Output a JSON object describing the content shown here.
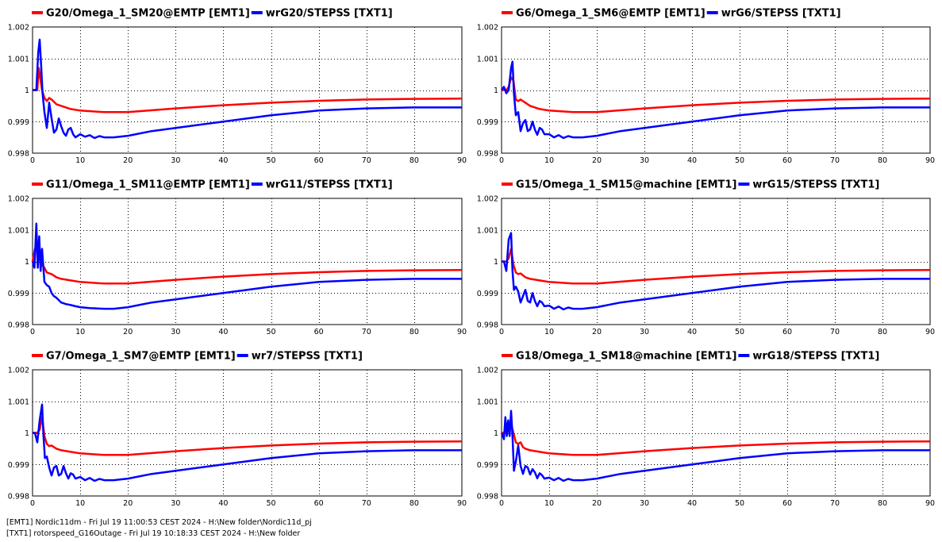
{
  "chart_data": [
    {
      "type": "line",
      "legend": [
        "G20/Omega_1_SM20@EMTP [EMT1]",
        "wrG20/STEPSS [TXT1]"
      ],
      "xlim": [
        0,
        90
      ],
      "ylim": [
        0.998,
        1.002
      ],
      "xticks": [
        0,
        10,
        20,
        30,
        40,
        50,
        60,
        70,
        80,
        90
      ],
      "yticks": [
        "0.998",
        "0.999",
        "1",
        "1.001",
        "1.002"
      ],
      "grid": true,
      "series": [
        {
          "name": "G20/Omega_1_SM20@EMTP [EMT1]",
          "color": "#ff0000",
          "x": [
            0,
            1,
            1.3,
            1.6,
            2,
            2.5,
            3,
            3.5,
            4,
            5,
            6,
            7,
            8,
            10,
            15,
            20,
            30,
            40,
            50,
            60,
            70,
            80,
            90
          ],
          "y": [
            1,
            1,
            1.0007,
            1.0004,
            1.0,
            0.99975,
            0.99965,
            0.99975,
            0.9997,
            0.99955,
            0.9995,
            0.99945,
            0.9994,
            0.99935,
            0.9993,
            0.9993,
            0.99942,
            0.99952,
            0.9996,
            0.99966,
            0.9997,
            0.99972,
            0.99973
          ]
        },
        {
          "name": "wrG20/STEPSS [TXT1]",
          "color": "#0000ff",
          "x": [
            0,
            0.8,
            1.2,
            1.5,
            1.8,
            2.1,
            2.5,
            3,
            3.5,
            4,
            4.5,
            5,
            5.5,
            6,
            6.5,
            7,
            7.5,
            8,
            8.5,
            9,
            10,
            11,
            12,
            13,
            14,
            15,
            17,
            20,
            25,
            30,
            40,
            50,
            60,
            70,
            80,
            90
          ],
          "y": [
            1,
            1,
            1.0012,
            1.0016,
            1.0008,
            0.9999,
            0.9993,
            0.9988,
            0.9996,
            0.9991,
            0.99865,
            0.99875,
            0.9991,
            0.99885,
            0.99865,
            0.99855,
            0.99875,
            0.9988,
            0.9986,
            0.9985,
            0.9986,
            0.99852,
            0.99857,
            0.99848,
            0.99854,
            0.9985,
            0.9985,
            0.99855,
            0.9987,
            0.9988,
            0.999,
            0.9992,
            0.99935,
            0.99942,
            0.99945,
            0.99945
          ]
        }
      ]
    },
    {
      "type": "line",
      "legend": [
        "G6/Omega_1_SM6@EMTP [EMT1]",
        "wrG6/STEPSS [TXT1]"
      ],
      "xlim": [
        0,
        90
      ],
      "ylim": [
        0.998,
        1.002
      ],
      "xticks": [
        0,
        10,
        20,
        30,
        40,
        50,
        60,
        70,
        80,
        90
      ],
      "yticks": [
        "0.998",
        "0.999",
        "1",
        "1.001",
        "1.002"
      ],
      "grid": true,
      "series": [
        {
          "name": "G6/Omega_1_SM6@EMTP [EMT1]",
          "color": "#ff0000",
          "x": [
            0,
            1,
            1.5,
            2,
            2.5,
            3,
            3.5,
            4,
            5,
            6,
            8,
            10,
            15,
            20,
            30,
            40,
            50,
            60,
            70,
            80,
            90
          ],
          "y": [
            1,
            1,
            1.0001,
            1.0004,
            1.0003,
            0.9997,
            0.99965,
            0.9997,
            0.9996,
            0.9995,
            0.9994,
            0.99935,
            0.9993,
            0.9993,
            0.99942,
            0.99952,
            0.9996,
            0.99966,
            0.9997,
            0.99972,
            0.99973
          ]
        },
        {
          "name": "wrG6/STEPSS [TXT1]",
          "color": "#0000ff",
          "x": [
            0,
            0.5,
            1,
            1.5,
            2,
            2.3,
            2.6,
            3,
            3.5,
            4,
            4.5,
            5,
            5.5,
            6,
            6.5,
            7,
            7.5,
            8,
            8.5,
            9,
            10,
            11,
            12,
            13,
            14,
            15,
            17,
            20,
            25,
            30,
            40,
            50,
            60,
            70,
            80,
            90
          ],
          "y": [
            1,
            1.0001,
            0.9999,
            1.0,
            1.0007,
            1.0009,
            0.9999,
            0.9992,
            0.9993,
            0.9987,
            0.99895,
            0.99905,
            0.9987,
            0.99875,
            0.999,
            0.99875,
            0.99858,
            0.9988,
            0.99875,
            0.9986,
            0.9986,
            0.9985,
            0.99857,
            0.99848,
            0.99854,
            0.9985,
            0.9985,
            0.99855,
            0.9987,
            0.9988,
            0.999,
            0.9992,
            0.99935,
            0.99942,
            0.99945,
            0.99945
          ]
        }
      ]
    },
    {
      "type": "line",
      "legend": [
        "G11/Omega_1_SM11@EMTP [EMT1]",
        "wrG11/STEPSS [TXT1]"
      ],
      "xlim": [
        0,
        90
      ],
      "ylim": [
        0.998,
        1.002
      ],
      "xticks": [
        0,
        10,
        20,
        30,
        40,
        50,
        60,
        70,
        80,
        90
      ],
      "yticks": [
        "0.998",
        "0.999",
        "1",
        "1.001",
        "1.002"
      ],
      "grid": true,
      "series": [
        {
          "name": "G11/Omega_1_SM11@EMTP [EMT1]",
          "color": "#ff0000",
          "x": [
            0,
            0.5,
            1,
            1.5,
            2,
            2.5,
            3,
            4,
            5,
            6,
            8,
            10,
            15,
            20,
            30,
            40,
            50,
            60,
            70,
            80,
            90
          ],
          "y": [
            1,
            1.0004,
            1.0006,
            1.0004,
            0.9999,
            0.9998,
            0.99965,
            0.9996,
            0.9995,
            0.99945,
            0.9994,
            0.99935,
            0.9993,
            0.9993,
            0.99942,
            0.99952,
            0.9996,
            0.99966,
            0.9997,
            0.99972,
            0.99973
          ]
        },
        {
          "name": "wrG11/STEPSS [TXT1]",
          "color": "#0000ff",
          "x": [
            0,
            0.4,
            0.8,
            1.1,
            1.4,
            1.7,
            2,
            2.5,
            3,
            3.5,
            4,
            4.5,
            5,
            6,
            7,
            8,
            9,
            10,
            12,
            15,
            17,
            20,
            25,
            30,
            40,
            50,
            60,
            70,
            80,
            90
          ],
          "y": [
            1,
            0.9998,
            1.0012,
            0.9998,
            1.0008,
            0.9997,
            1.0004,
            0.99935,
            0.99925,
            0.9992,
            0.999,
            0.9989,
            0.99885,
            0.9987,
            0.99865,
            0.99862,
            0.99858,
            0.99855,
            0.99852,
            0.9985,
            0.9985,
            0.99855,
            0.9987,
            0.9988,
            0.999,
            0.9992,
            0.99935,
            0.99942,
            0.99945,
            0.99945
          ]
        }
      ]
    },
    {
      "type": "line",
      "legend": [
        "G15/Omega_1_SM15@machine [EMT1]",
        "wrG15/STEPSS [TXT1]"
      ],
      "xlim": [
        0,
        90
      ],
      "ylim": [
        0.998,
        1.002
      ],
      "xticks": [
        0,
        10,
        20,
        30,
        40,
        50,
        60,
        70,
        80,
        90
      ],
      "yticks": [
        "0.998",
        "0.999",
        "1",
        "1.001",
        "1.002"
      ],
      "grid": true,
      "series": [
        {
          "name": "G15/Omega_1_SM15@machine [EMT1]",
          "color": "#ff0000",
          "x": [
            0,
            1,
            1.5,
            2,
            2.5,
            3,
            3.5,
            4,
            5,
            6,
            8,
            10,
            15,
            20,
            30,
            40,
            50,
            60,
            70,
            80,
            90
          ],
          "y": [
            1,
            1,
            1.0001,
            1.0004,
            0.9999,
            0.99965,
            0.9996,
            0.99962,
            0.9995,
            0.99945,
            0.9994,
            0.99935,
            0.9993,
            0.9993,
            0.99942,
            0.99952,
            0.9996,
            0.99966,
            0.9997,
            0.99972,
            0.99973
          ]
        },
        {
          "name": "wrG15/STEPSS [TXT1]",
          "color": "#0000ff",
          "x": [
            0,
            0.5,
            1,
            1.5,
            2,
            2.3,
            2.6,
            3,
            3.5,
            4,
            4.5,
            5,
            5.5,
            6,
            6.5,
            7,
            7.5,
            8,
            8.5,
            9,
            10,
            11,
            12,
            13,
            14,
            15,
            17,
            20,
            25,
            30,
            40,
            50,
            60,
            70,
            80,
            90
          ],
          "y": [
            1,
            1,
            0.9997,
            1.0007,
            1.0009,
            0.9997,
            0.9991,
            0.9992,
            0.99905,
            0.9987,
            0.9989,
            0.9991,
            0.99875,
            0.9987,
            0.999,
            0.99875,
            0.99858,
            0.99875,
            0.9987,
            0.99858,
            0.9986,
            0.9985,
            0.99857,
            0.99848,
            0.99854,
            0.9985,
            0.9985,
            0.99855,
            0.9987,
            0.9988,
            0.999,
            0.9992,
            0.99935,
            0.99942,
            0.99945,
            0.99945
          ]
        }
      ]
    },
    {
      "type": "line",
      "legend": [
        "G7/Omega_1_SM7@EMTP [EMT1]",
        "wr7/STEPSS [TXT1]"
      ],
      "xlim": [
        0,
        90
      ],
      "ylim": [
        0.998,
        1.002
      ],
      "xticks": [
        0,
        10,
        20,
        30,
        40,
        50,
        60,
        70,
        80,
        90
      ],
      "yticks": [
        "0.998",
        "0.999",
        "1",
        "1.001",
        "1.002"
      ],
      "grid": true,
      "series": [
        {
          "name": "G7/Omega_1_SM7@EMTP [EMT1]",
          "color": "#ff0000",
          "x": [
            0,
            1,
            1.5,
            2,
            2.5,
            3,
            3.5,
            4,
            5,
            6,
            8,
            10,
            15,
            20,
            30,
            40,
            50,
            60,
            70,
            80,
            90
          ],
          "y": [
            1,
            1,
            1.0001,
            1.0005,
            0.9999,
            0.99965,
            0.99958,
            0.9996,
            0.9995,
            0.99945,
            0.9994,
            0.99935,
            0.9993,
            0.9993,
            0.99942,
            0.99952,
            0.9996,
            0.99966,
            0.9997,
            0.99972,
            0.99973
          ]
        },
        {
          "name": "wr7/STEPSS [TXT1]",
          "color": "#0000ff",
          "x": [
            0,
            0.5,
            1,
            1.5,
            2,
            2.3,
            2.6,
            3,
            3.5,
            4,
            4.5,
            5,
            5.5,
            6,
            6.5,
            7,
            7.5,
            8,
            8.5,
            9,
            10,
            11,
            12,
            13,
            14,
            15,
            17,
            20,
            25,
            30,
            40,
            50,
            60,
            70,
            80,
            90
          ],
          "y": [
            1,
            1,
            0.9997,
            1.0004,
            1.0009,
            0.9999,
            0.9992,
            0.99925,
            0.9989,
            0.99865,
            0.9989,
            0.99895,
            0.99865,
            0.9987,
            0.99895,
            0.99872,
            0.99855,
            0.99872,
            0.99868,
            0.99855,
            0.9986,
            0.9985,
            0.99857,
            0.99848,
            0.99854,
            0.9985,
            0.9985,
            0.99855,
            0.9987,
            0.9988,
            0.999,
            0.9992,
            0.99935,
            0.99942,
            0.99945,
            0.99945
          ]
        }
      ]
    },
    {
      "type": "line",
      "legend": [
        "G18/Omega_1_SM18@machine [EMT1]",
        "wrG18/STEPSS [TXT1]"
      ],
      "xlim": [
        0,
        90
      ],
      "ylim": [
        0.998,
        1.002
      ],
      "xticks": [
        0,
        10,
        20,
        30,
        40,
        50,
        60,
        70,
        80,
        90
      ],
      "yticks": [
        "0.998",
        "0.999",
        "1",
        "1.001",
        "1.002"
      ],
      "grid": true,
      "series": [
        {
          "name": "G18/Omega_1_SM18@machine [EMT1]",
          "color": "#ff0000",
          "x": [
            0,
            0.8,
            1.2,
            1.6,
            2,
            2.5,
            3,
            3.5,
            4,
            4.5,
            5,
            6,
            8,
            10,
            15,
            20,
            30,
            40,
            50,
            60,
            70,
            80,
            90
          ],
          "y": [
            1,
            1,
            1.0003,
            1.0001,
            1.0003,
            1.0,
            0.9997,
            0.99965,
            0.9997,
            0.99955,
            0.9995,
            0.99945,
            0.9994,
            0.99935,
            0.9993,
            0.9993,
            0.99942,
            0.99952,
            0.9996,
            0.99966,
            0.9997,
            0.99972,
            0.99973
          ]
        },
        {
          "name": "wrG18/STEPSS [TXT1]",
          "color": "#0000ff",
          "x": [
            0,
            0.5,
            0.8,
            1.1,
            1.4,
            1.7,
            2,
            2.3,
            2.6,
            3,
            3.5,
            4,
            4.5,
            5,
            5.5,
            6,
            6.5,
            7,
            7.5,
            8,
            8.5,
            9,
            10,
            11,
            12,
            13,
            14,
            15,
            17,
            20,
            25,
            30,
            40,
            50,
            60,
            70,
            80,
            90
          ],
          "y": [
            1,
            0.9998,
            1.0005,
            0.9999,
            1.0004,
            0.9999,
            1.0007,
            0.9999,
            0.9988,
            0.9991,
            0.9996,
            0.99895,
            0.9987,
            0.99895,
            0.9989,
            0.99868,
            0.99885,
            0.99875,
            0.99856,
            0.99872,
            0.99866,
            0.99855,
            0.99858,
            0.9985,
            0.99857,
            0.99848,
            0.99854,
            0.9985,
            0.9985,
            0.99855,
            0.9987,
            0.9988,
            0.999,
            0.9992,
            0.99935,
            0.99942,
            0.99945,
            0.99945
          ]
        }
      ]
    }
  ],
  "footer": {
    "line1": "[EMT1] Nordic11dm - Fri Jul 19 11:00:53 CEST 2024 - H:\\New folder\\Nordic11d_pj",
    "line2": "[TXT1] rotorspeed_G16Outage - Fri Jul 19 10:18:33 CEST 2024 - H:\\New folder"
  }
}
